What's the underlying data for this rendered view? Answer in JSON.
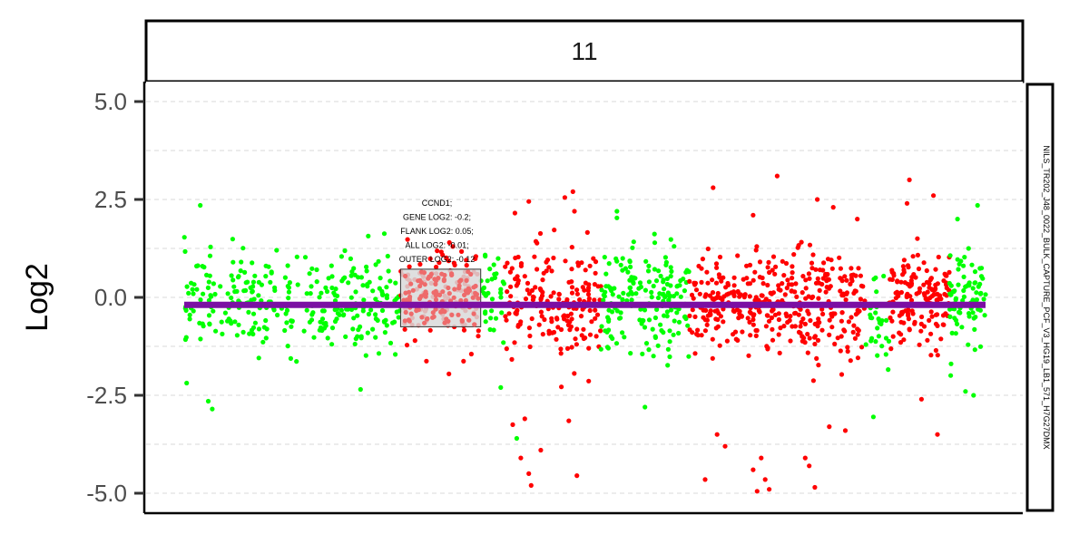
{
  "chart_data": {
    "type": "scatter",
    "facet_label": "11",
    "ylabel": "Log2",
    "sample_label": "NILS_TR202_J48_0022_BULK_CAPTURE_PCF_V3_HG19_LB1_571_H7G27DMX",
    "ylim": [
      -5.3,
      5.5
    ],
    "xlim": [
      0,
      100
    ],
    "y_ticks": [
      5.0,
      2.5,
      0.0,
      -2.5,
      -5.0
    ],
    "y_tick_labels": [
      "5.0",
      "2.5",
      "0.0",
      "-2.5",
      "-5.0"
    ],
    "grid": true,
    "colors": {
      "green": "#00ff00",
      "red": "#ff0000",
      "segment": "#7b0fa3",
      "gene_box": "#d9d9d9",
      "gene_points": "#ee6b6b",
      "grid": "#d9d9d9"
    },
    "segment": {
      "x_start": 0,
      "x_end": 100,
      "y": -0.19
    },
    "regions": [
      {
        "x_start": 0,
        "x_end": 27,
        "color": "green",
        "center": -0.1,
        "spread": 0.8,
        "n": 300
      },
      {
        "x_start": 27,
        "x_end": 37,
        "color": "red",
        "center": 0.0,
        "spread": 0.9,
        "n": 110
      },
      {
        "x_start": 37,
        "x_end": 40,
        "color": "green",
        "center": 0.0,
        "spread": 0.6,
        "n": 40
      },
      {
        "x_start": 40,
        "x_end": 52,
        "color": "red",
        "center": -0.15,
        "spread": 1.0,
        "n": 190
      },
      {
        "x_start": 52,
        "x_end": 63,
        "color": "green",
        "center": -0.1,
        "spread": 0.9,
        "n": 180
      },
      {
        "x_start": 63,
        "x_end": 85,
        "color": "red",
        "center": -0.2,
        "spread": 0.9,
        "n": 380
      },
      {
        "x_start": 85,
        "x_end": 88,
        "color": "green",
        "center": -0.5,
        "spread": 0.8,
        "n": 30
      },
      {
        "x_start": 88,
        "x_end": 95.5,
        "color": "red",
        "center": -0.1,
        "spread": 0.7,
        "n": 150
      },
      {
        "x_start": 95.5,
        "x_end": 100,
        "color": "green",
        "center": 0.0,
        "spread": 0.8,
        "n": 80
      }
    ],
    "outliers": [
      {
        "x": 2,
        "y": 2.35,
        "color": "green"
      },
      {
        "x": 3.5,
        "y": -2.85,
        "color": "green"
      },
      {
        "x": 3.0,
        "y": -2.65,
        "color": "green"
      },
      {
        "x": 22,
        "y": -2.35,
        "color": "green"
      },
      {
        "x": 39.5,
        "y": -2.3,
        "color": "green"
      },
      {
        "x": 43,
        "y": 2.45,
        "color": "red"
      },
      {
        "x": 47.5,
        "y": 2.55,
        "color": "red"
      },
      {
        "x": 48.5,
        "y": 2.7,
        "color": "red"
      },
      {
        "x": 48.7,
        "y": 2.2,
        "color": "red"
      },
      {
        "x": 42.5,
        "y": -3.1,
        "color": "red"
      },
      {
        "x": 41,
        "y": -3.25,
        "color": "red"
      },
      {
        "x": 42,
        "y": -4.1,
        "color": "red"
      },
      {
        "x": 43,
        "y": -4.5,
        "color": "red"
      },
      {
        "x": 43.3,
        "y": -4.8,
        "color": "red"
      },
      {
        "x": 44.5,
        "y": -3.9,
        "color": "red"
      },
      {
        "x": 48.0,
        "y": -3.15,
        "color": "red"
      },
      {
        "x": 49.0,
        "y": -4.55,
        "color": "red"
      },
      {
        "x": 54,
        "y": 2.2,
        "color": "green"
      },
      {
        "x": 57.5,
        "y": -2.8,
        "color": "green"
      },
      {
        "x": 41.5,
        "y": -3.6,
        "color": "green"
      },
      {
        "x": 66,
        "y": 2.8,
        "color": "red"
      },
      {
        "x": 71,
        "y": 2.1,
        "color": "red"
      },
      {
        "x": 74,
        "y": 3.1,
        "color": "red"
      },
      {
        "x": 79,
        "y": 2.5,
        "color": "red"
      },
      {
        "x": 81,
        "y": 2.3,
        "color": "red"
      },
      {
        "x": 84,
        "y": 2.0,
        "color": "red"
      },
      {
        "x": 65,
        "y": -4.65,
        "color": "red"
      },
      {
        "x": 66.5,
        "y": -3.5,
        "color": "red"
      },
      {
        "x": 67.5,
        "y": -3.8,
        "color": "red"
      },
      {
        "x": 71,
        "y": -4.4,
        "color": "red"
      },
      {
        "x": 72,
        "y": -4.1,
        "color": "red"
      },
      {
        "x": 72.5,
        "y": -4.65,
        "color": "red"
      },
      {
        "x": 71.5,
        "y": -4.95,
        "color": "red"
      },
      {
        "x": 73,
        "y": -4.9,
        "color": "red"
      },
      {
        "x": 77.5,
        "y": -4.1,
        "color": "red"
      },
      {
        "x": 78,
        "y": -4.3,
        "color": "red"
      },
      {
        "x": 78.7,
        "y": -4.85,
        "color": "red"
      },
      {
        "x": 80.5,
        "y": -3.3,
        "color": "red"
      },
      {
        "x": 82.5,
        "y": -3.4,
        "color": "red"
      },
      {
        "x": 86,
        "y": -3.05,
        "color": "green"
      },
      {
        "x": 90.5,
        "y": 3.0,
        "color": "red"
      },
      {
        "x": 90.2,
        "y": 2.4,
        "color": "red"
      },
      {
        "x": 93.5,
        "y": 2.6,
        "color": "red"
      },
      {
        "x": 91.5,
        "y": 1.5,
        "color": "red"
      },
      {
        "x": 94.0,
        "y": -3.5,
        "color": "red"
      },
      {
        "x": 92,
        "y": -2.6,
        "color": "red"
      },
      {
        "x": 96.5,
        "y": 2.0,
        "color": "green"
      },
      {
        "x": 99,
        "y": 2.35,
        "color": "green"
      },
      {
        "x": 97.5,
        "y": -2.4,
        "color": "green"
      },
      {
        "x": 98.5,
        "y": -2.5,
        "color": "green"
      }
    ],
    "gene": {
      "name": "CCND1",
      "x_start": 27,
      "x_end": 37,
      "y_top": 0.72,
      "y_bottom": -0.75,
      "n": 110,
      "annotation_lines": [
        "CCND1;",
        "GENE LOG2: -0.2;",
        "FLANK LOG2: 0.05;",
        "ALL LOG2: -0.01;",
        "OUTER LOG2: -0.12"
      ]
    }
  }
}
